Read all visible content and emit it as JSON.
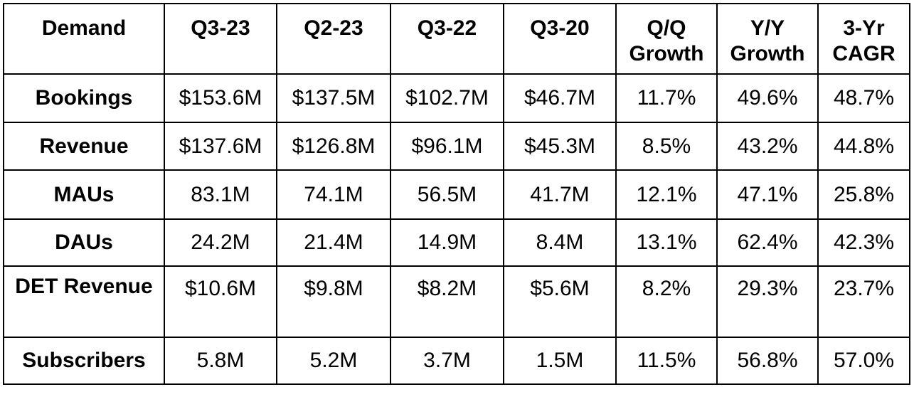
{
  "table": {
    "headers": [
      "Demand",
      "Q3-23",
      "Q2-23",
      "Q3-22",
      "Q3-20",
      "Q/Q Growth",
      "Y/Y Growth",
      "3-Yr CAGR"
    ],
    "rows": [
      {
        "label": "Bookings",
        "values": [
          "$153.6M",
          "$137.5M",
          "$102.7M",
          "$46.7M",
          "11.7%",
          "49.6%",
          "48.7%"
        ]
      },
      {
        "label": "Revenue",
        "values": [
          "$137.6M",
          "$126.8M",
          "$96.1M",
          "$45.3M",
          "8.5%",
          "43.2%",
          "44.8%"
        ]
      },
      {
        "label": "MAUs",
        "values": [
          "83.1M",
          "74.1M",
          "56.5M",
          "41.7M",
          "12.1%",
          "47.1%",
          "25.8%"
        ]
      },
      {
        "label": "DAUs",
        "values": [
          "24.2M",
          "21.4M",
          "14.9M",
          "8.4M",
          "13.1%",
          "62.4%",
          "42.3%"
        ]
      },
      {
        "label": "DET Revenue",
        "values": [
          "$10.6M",
          "$9.8M",
          "$8.2M",
          "$5.6M",
          "8.2%",
          "29.3%",
          "23.7%"
        ]
      },
      {
        "label": "Subscribers",
        "values": [
          "5.8M",
          "5.2M",
          "3.7M",
          "1.5M",
          "11.5%",
          "56.8%",
          "57.0%"
        ]
      }
    ]
  },
  "colors": {
    "border": "#000000",
    "text": "#000000",
    "background": "#ffffff"
  }
}
